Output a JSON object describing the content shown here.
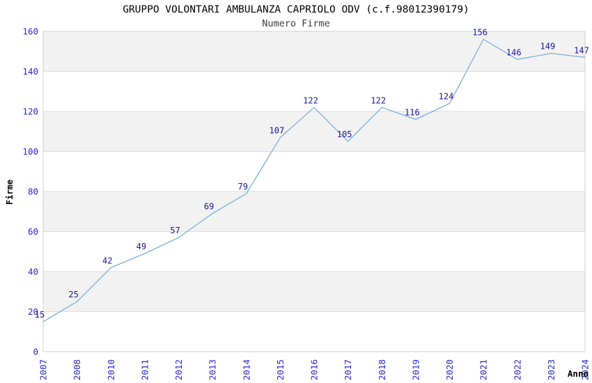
{
  "chart_data": {
    "type": "line",
    "title": "GRUPPO VOLONTARI AMBULANZA CAPRIOLO ODV (c.f.98012390179)",
    "subtitle": "Numero Firme",
    "xlabel": "Anno",
    "ylabel": "Firme",
    "categories": [
      "2007",
      "2008",
      "2010",
      "2011",
      "2012",
      "2013",
      "2014",
      "2015",
      "2016",
      "2017",
      "2018",
      "2019",
      "2020",
      "2021",
      "2022",
      "2023",
      "2024"
    ],
    "values": [
      15,
      25,
      42,
      49,
      57,
      69,
      79,
      107,
      122,
      105,
      122,
      116,
      124,
      156,
      146,
      149,
      147
    ],
    "yticks": [
      0,
      20,
      40,
      60,
      80,
      100,
      120,
      140,
      160
    ],
    "ylim": [
      0,
      160
    ],
    "grid": "horizontal",
    "bands": "alternating-horizontal",
    "legend": "none",
    "point_labels": "visible",
    "colors": {
      "line": "#79ade0",
      "point_label": "#16169a",
      "tick_label": "#2626cf",
      "band_fill": "#f2f2f2",
      "gridline": "#dcdcdc",
      "plot_border": "#d0d0d0",
      "title": "#000000",
      "subtitle": "#3d3d3d",
      "axis_title": "#000000"
    }
  }
}
